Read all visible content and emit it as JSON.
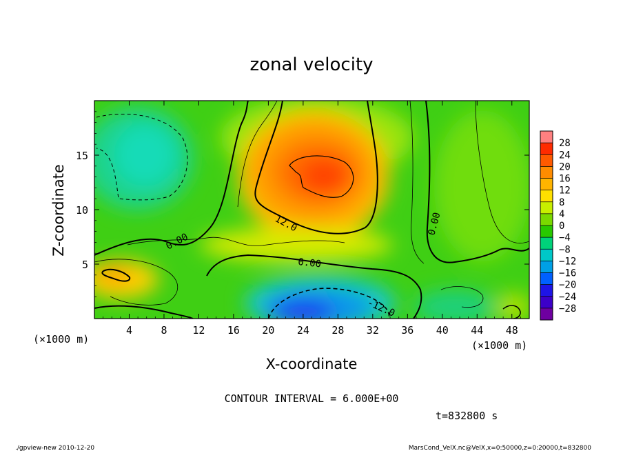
{
  "chart_data": {
    "type": "heatmap",
    "title": "zonal velocity",
    "xlabel": "X-coordinate",
    "ylabel": "Z-coordinate",
    "x_unit_label": "(×1000 m)",
    "y_unit_label": "(×1000 m)",
    "xlim": [
      0,
      50
    ],
    "ylim": [
      0,
      20
    ],
    "x_ticks": [
      4,
      8,
      12,
      16,
      20,
      24,
      28,
      32,
      36,
      40,
      44,
      48
    ],
    "y_ticks": [
      5,
      10,
      15
    ],
    "colorbar": {
      "levels": [
        "28",
        "24",
        "20",
        "16",
        "12",
        "8",
        "4",
        "0",
        "−4",
        "−8",
        "−12",
        "−16",
        "−20",
        "−24",
        "−28"
      ],
      "colors": [
        "#ff8080",
        "#ff2b00",
        "#ff5a00",
        "#ff8c00",
        "#ffb400",
        "#ffe000",
        "#c8ee00",
        "#7ad900",
        "#28c800",
        "#00d27a",
        "#00c8c8",
        "#00a0e6",
        "#0060ff",
        "#1e14e6",
        "#3c00c8",
        "#6e00a0"
      ]
    },
    "contour_interval_text": "CONTOUR INTERVAL = 6.000E+00",
    "contour_labels": [
      "0.00",
      "0.00",
      "0.00",
      "12.0",
      "-12.0"
    ],
    "time_text": "t=832800 s",
    "features": [
      {
        "x": 26,
        "z": 13,
        "value": 24
      },
      {
        "x": 6,
        "z": 16,
        "value": -8
      },
      {
        "x": 26,
        "z": 1,
        "value": -20
      },
      {
        "x": 3,
        "z": 4,
        "value": 12
      },
      {
        "x": 47,
        "z": 11,
        "value": 4
      },
      {
        "x": 14,
        "z": 9,
        "value": 6
      }
    ]
  },
  "footer": {
    "left": "./gpview-new  2010-12-20",
    "right": "MarsCond_VelX.nc@VelX,x=0:50000,z=0:20000,t=832800"
  }
}
